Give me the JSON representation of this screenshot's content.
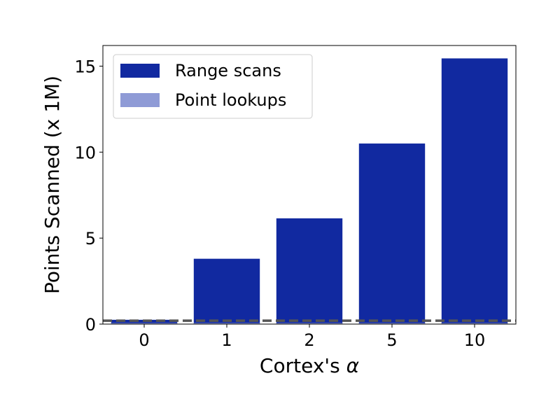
{
  "chart_data": {
    "type": "bar",
    "title": "",
    "xlabel": "Cortex's",
    "xlabel_symbol": "α",
    "ylabel": "Points Scanned (x 1M)",
    "categories": [
      "0",
      "1",
      "2",
      "5",
      "10"
    ],
    "series": [
      {
        "name": "Range scans",
        "values": [
          0.25,
          3.8,
          6.15,
          10.5,
          15.45
        ],
        "color": "#1129a0"
      },
      {
        "name": "Point lookups",
        "values": [
          0.06,
          0.06,
          0.06,
          0.06,
          0.06
        ],
        "color": "#8f9bd6"
      }
    ],
    "reference_line": {
      "value": 0.2,
      "style": "dashed",
      "color": "#555555"
    },
    "ylim": [
      0,
      16.2
    ],
    "yticks": [
      0,
      5,
      10,
      15
    ],
    "legend_position": "top-left",
    "grid": false
  }
}
